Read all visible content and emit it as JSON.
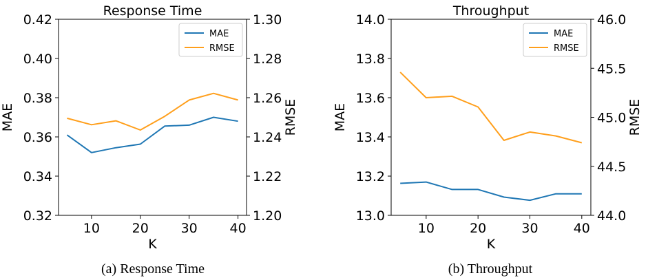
{
  "chart_data": [
    {
      "type": "line",
      "title": "Response Time",
      "caption": "(a)  Response Time",
      "xlabel": "K",
      "ylabel": "MAE",
      "y2label": "RMSE",
      "x": [
        5,
        10,
        15,
        20,
        25,
        30,
        35,
        40
      ],
      "xticks": [
        10,
        20,
        30,
        40
      ],
      "ylim": [
        0.32,
        0.42
      ],
      "yticks": [
        "0.32",
        "0.34",
        "0.36",
        "0.38",
        "0.40",
        "0.42"
      ],
      "y2lim": [
        1.2,
        1.3
      ],
      "y2ticks": [
        "1.20",
        "1.22",
        "1.24",
        "1.26",
        "1.28",
        "1.30"
      ],
      "legend": "top-right",
      "series": [
        {
          "name": "MAE",
          "axis": "left",
          "color": "#1f77b4",
          "values": [
            0.361,
            0.352,
            0.3545,
            0.3563,
            0.3655,
            0.366,
            0.37,
            0.368
          ]
        },
        {
          "name": "RMSE",
          "axis": "right",
          "color": "#ff9f1c",
          "values": [
            1.2495,
            1.2462,
            1.2482,
            1.2435,
            1.2505,
            1.2588,
            1.2622,
            1.2588
          ]
        }
      ]
    },
    {
      "type": "line",
      "title": "Throughput",
      "caption": "(b)  Throughput",
      "xlabel": "K",
      "ylabel": "MAE",
      "y2label": "RMSE",
      "x": [
        5,
        10,
        15,
        20,
        25,
        30,
        35,
        40
      ],
      "xticks": [
        10,
        20,
        30,
        40
      ],
      "ylim": [
        13.0,
        14.0
      ],
      "yticks": [
        "13.0",
        "13.2",
        "13.4",
        "13.6",
        "13.8",
        "14.0"
      ],
      "y2lim": [
        44.0,
        46.0
      ],
      "y2ticks": [
        "44.0",
        "44.5",
        "45.0",
        "45.5",
        "46.0"
      ],
      "legend": "top-right",
      "series": [
        {
          "name": "MAE",
          "axis": "left",
          "color": "#1f77b4",
          "values": [
            13.163,
            13.17,
            13.132,
            13.132,
            13.093,
            13.077,
            13.11,
            13.11
          ]
        },
        {
          "name": "RMSE",
          "axis": "right",
          "color": "#ff9f1c",
          "values": [
            45.46,
            45.2,
            45.215,
            45.105,
            44.765,
            44.85,
            44.81,
            44.74
          ]
        }
      ]
    }
  ]
}
